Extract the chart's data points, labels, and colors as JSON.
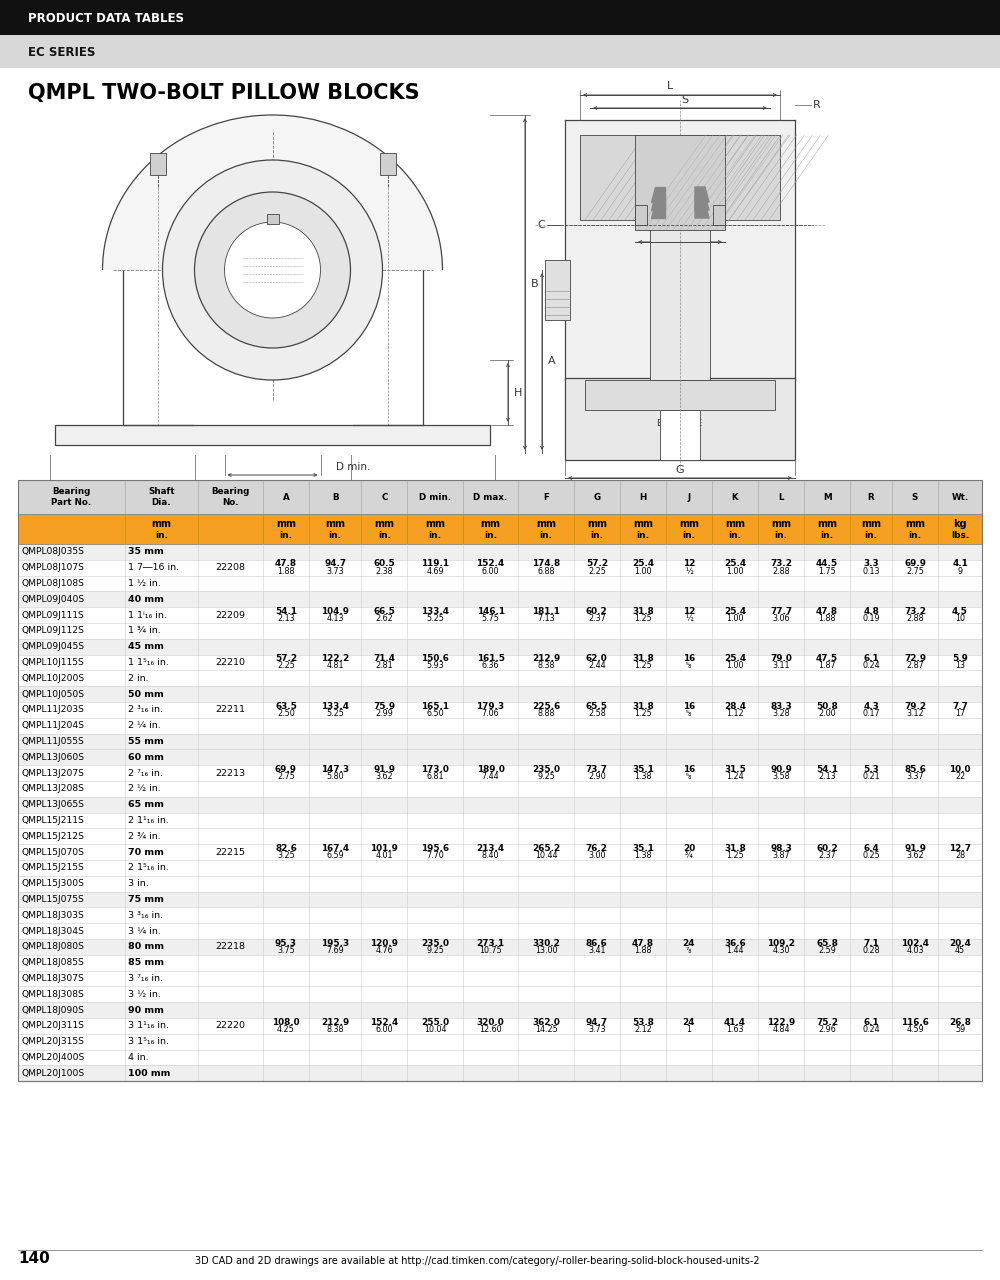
{
  "page_title": "PRODUCT DATA TABLES",
  "series": "EC SERIES",
  "chart_title": "QMPL TWO-BOLT PILLOW BLOCKS",
  "col_headers": [
    "Bearing\nPart No.",
    "Shaft\nDia.",
    "Bearing\nNo.",
    "A",
    "B",
    "C",
    "D min.",
    "D max.",
    "F",
    "G",
    "H",
    "J",
    "K",
    "L",
    "M",
    "R",
    "S",
    "Wt."
  ],
  "col_units_mm": [
    "",
    "mm",
    "",
    "mm",
    "mm",
    "mm",
    "mm",
    "mm",
    "mm",
    "mm",
    "mm",
    "mm",
    "mm",
    "mm",
    "mm",
    "mm",
    "mm",
    "kg"
  ],
  "col_units_in": [
    "",
    "in.",
    "",
    "in.",
    "in.",
    "in.",
    "in.",
    "in.",
    "in.",
    "in.",
    "in.",
    "in.",
    "in.",
    "in.",
    "in.",
    "in.",
    "in.",
    "lbs."
  ],
  "rows": [
    [
      "QMPL08J035S",
      "35 mm",
      "",
      "",
      "",
      "",
      "",
      "",
      "",
      "",
      "",
      "",
      "",
      "",
      "",
      "",
      "",
      ""
    ],
    [
      "QMPL08J107S",
      "1 7―16 in.",
      "22208",
      "47.8\n1.88",
      "94.7\n3.73",
      "60.5\n2.38",
      "119.1\n4.69",
      "152.4\n6.00",
      "174.8\n6.88",
      "57.2\n2.25",
      "25.4\n1.00",
      "12\n½",
      "25.4\n1.00",
      "73.2\n2.88",
      "44.5\n1.75",
      "3.3\n0.13",
      "69.9\n2.75",
      "4.1\n9"
    ],
    [
      "QMPL08J108S",
      "1 ½ in.",
      "",
      "",
      "",
      "",
      "",
      "",
      "",
      "",
      "",
      "",
      "",
      "",
      "",
      "",
      "",
      ""
    ],
    [
      "QMPL09J040S",
      "40 mm",
      "",
      "",
      "",
      "",
      "",
      "",
      "",
      "",
      "",
      "",
      "",
      "",
      "",
      "",
      "",
      ""
    ],
    [
      "QMPL09J111S",
      "1 1ⁱ₁₆ in.",
      "22209",
      "54.1\n2.13",
      "104.9\n4.13",
      "66.5\n2.62",
      "133.4\n5.25",
      "146.1\n5.75",
      "181.1\n7.13",
      "60.2\n2.37",
      "31.8\n1.25",
      "12\n½",
      "25.4\n1.00",
      "77.7\n3.06",
      "47.8\n1.88",
      "4.8\n0.19",
      "73.2\n2.88",
      "4.5\n10"
    ],
    [
      "QMPL09J112S",
      "1 ¾ in.",
      "",
      "",
      "",
      "",
      "",
      "",
      "",
      "",
      "",
      "",
      "",
      "",
      "",
      "",
      "",
      ""
    ],
    [
      "QMPL09J045S",
      "45 mm",
      "",
      "",
      "",
      "",
      "",
      "",
      "",
      "",
      "",
      "",
      "",
      "",
      "",
      "",
      "",
      ""
    ],
    [
      "QMPL10J115S",
      "1 1⁵₁₆ in.",
      "22210",
      "57.2\n2.25",
      "122.2\n4.81",
      "71.4\n2.81",
      "150.6\n5.93",
      "161.5\n6.36",
      "212.9\n8.38",
      "62.0\n2.44",
      "31.8\n1.25",
      "16\n⁵₈",
      "25.4\n1.00",
      "79.0\n3.11",
      "47.5\n1.87",
      "6.1\n0.24",
      "72.9\n2.87",
      "5.9\n13"
    ],
    [
      "QMPL10J200S",
      "2 in.",
      "",
      "",
      "",
      "",
      "",
      "",
      "",
      "",
      "",
      "",
      "",
      "",
      "",
      "",
      "",
      ""
    ],
    [
      "QMPL10J050S",
      "50 mm",
      "",
      "",
      "",
      "",
      "",
      "",
      "",
      "",
      "",
      "",
      "",
      "",
      "",
      "",
      "",
      ""
    ],
    [
      "QMPL11J203S",
      "2 ³₁₆ in.",
      "22211",
      "63.5\n2.50",
      "133.4\n5.25",
      "75.9\n2.99",
      "165.1\n6.50",
      "179.3\n7.06",
      "225.6\n8.88",
      "65.5\n2.58",
      "31.8\n1.25",
      "16\n⁵₈",
      "28.4\n1.12",
      "83.3\n3.28",
      "50.8\n2.00",
      "4.3\n0.17",
      "79.2\n3.12",
      "7.7\n17"
    ],
    [
      "QMPL11J204S",
      "2 ¼ in.",
      "",
      "",
      "",
      "",
      "",
      "",
      "",
      "",
      "",
      "",
      "",
      "",
      "",
      "",
      "",
      ""
    ],
    [
      "QMPL11J055S",
      "55 mm",
      "",
      "",
      "",
      "",
      "",
      "",
      "",
      "",
      "",
      "",
      "",
      "",
      "",
      "",
      "",
      ""
    ],
    [
      "QMPL13J060S",
      "60 mm",
      "",
      "",
      "",
      "",
      "",
      "",
      "",
      "",
      "",
      "",
      "",
      "",
      "",
      "",
      "",
      ""
    ],
    [
      "QMPL13J207S",
      "2 ⁷₁₆ in.",
      "22213",
      "69.9\n2.75",
      "147.3\n5.80",
      "91.9\n3.62",
      "173.0\n6.81",
      "189.0\n7.44",
      "235.0\n9.25",
      "73.7\n2.90",
      "35.1\n1.38",
      "16\n⁵₈",
      "31.5\n1.24",
      "90.9\n3.58",
      "54.1\n2.13",
      "5.3\n0.21",
      "85.6\n3.37",
      "10.0\n22"
    ],
    [
      "QMPL13J208S",
      "2 ½ in.",
      "",
      "",
      "",
      "",
      "",
      "",
      "",
      "",
      "",
      "",
      "",
      "",
      "",
      "",
      "",
      ""
    ],
    [
      "QMPL13J065S",
      "65 mm",
      "",
      "",
      "",
      "",
      "",
      "",
      "",
      "",
      "",
      "",
      "",
      "",
      "",
      "",
      "",
      ""
    ],
    [
      "QMPL15J211S",
      "2 1¹₁₆ in.",
      "",
      "",
      "",
      "",
      "",
      "",
      "",
      "",
      "",
      "",
      "",
      "",
      "",
      "",
      "",
      ""
    ],
    [
      "QMPL15J212S",
      "2 ¾ in.",
      "",
      "",
      "",
      "",
      "",
      "",
      "",
      "",
      "",
      "",
      "",
      "",
      "",
      "",
      "",
      ""
    ],
    [
      "QMPL15J070S",
      "70 mm",
      "22215",
      "82.6\n3.25",
      "167.4\n6.59",
      "101.9\n4.01",
      "195.6\n7.70",
      "213.4\n8.40",
      "265.2\n10.44",
      "76.2\n3.00",
      "35.1\n1.38",
      "20\n¾",
      "31.8\n1.25",
      "98.3\n3.87",
      "60.2\n2.37",
      "6.4\n0.25",
      "91.9\n3.62",
      "12.7\n28"
    ],
    [
      "QMPL15J215S",
      "2 1⁵₁₆ in.",
      "",
      "",
      "",
      "",
      "",
      "",
      "",
      "",
      "",
      "",
      "",
      "",
      "",
      "",
      "",
      ""
    ],
    [
      "QMPL15J300S",
      "3 in.",
      "",
      "",
      "",
      "",
      "",
      "",
      "",
      "",
      "",
      "",
      "",
      "",
      "",
      "",
      "",
      ""
    ],
    [
      "QMPL15J075S",
      "75 mm",
      "",
      "",
      "",
      "",
      "",
      "",
      "",
      "",
      "",
      "",
      "",
      "",
      "",
      "",
      "",
      ""
    ],
    [
      "QMPL18J303S",
      "3 ³₁₆ in.",
      "",
      "",
      "",
      "",
      "",
      "",
      "",
      "",
      "",
      "",
      "",
      "",
      "",
      "",
      "",
      ""
    ],
    [
      "QMPL18J304S",
      "3 ¼ in.",
      "",
      "",
      "",
      "",
      "",
      "",
      "",
      "",
      "",
      "",
      "",
      "",
      "",
      "",
      "",
      ""
    ],
    [
      "QMPL18J080S",
      "80 mm",
      "22218",
      "95.3\n3.75",
      "195.3\n7.69",
      "120.9\n4.76",
      "235.0\n9.25",
      "273.1\n10.75",
      "330.2\n13.00",
      "86.6\n3.41",
      "47.8\n1.88",
      "24\n⁷₈",
      "36.6\n1.44",
      "109.2\n4.30",
      "65.8\n2.59",
      "7.1\n0.28",
      "102.4\n4.03",
      "20.4\n45"
    ],
    [
      "QMPL18J085S",
      "85 mm",
      "",
      "",
      "",
      "",
      "",
      "",
      "",
      "",
      "",
      "",
      "",
      "",
      "",
      "",
      "",
      ""
    ],
    [
      "QMPL18J307S",
      "3 ⁷₁₆ in.",
      "",
      "",
      "",
      "",
      "",
      "",
      "",
      "",
      "",
      "",
      "",
      "",
      "",
      "",
      "",
      ""
    ],
    [
      "QMPL18J308S",
      "3 ½ in.",
      "",
      "",
      "",
      "",
      "",
      "",
      "",
      "",
      "",
      "",
      "",
      "",
      "",
      "",
      "",
      ""
    ],
    [
      "QMPL18J090S",
      "90 mm",
      "",
      "",
      "",
      "",
      "",
      "",
      "",
      "",
      "",
      "",
      "",
      "",
      "",
      "",
      "",
      ""
    ],
    [
      "QMPL20J311S",
      "3 1¹₁₆ in.",
      "22220",
      "108.0\n4.25",
      "212.9\n8.38",
      "152.4\n6.00",
      "255.0\n10.04",
      "320.0\n12.60",
      "362.0\n14.25",
      "94.7\n3.73",
      "53.8\n2.12",
      "24\n1",
      "41.4\n1.63",
      "122.9\n4.84",
      "75.2\n2.96",
      "6.1\n0.24",
      "116.6\n4.59",
      "26.8\n59"
    ],
    [
      "QMPL20J315S",
      "3 1⁵₁₆ in.",
      "",
      "",
      "",
      "",
      "",
      "",
      "",
      "",
      "",
      "",
      "",
      "",
      "",
      "",
      "",
      ""
    ],
    [
      "QMPL20J400S",
      "4 in.",
      "",
      "",
      "",
      "",
      "",
      "",
      "",
      "",
      "",
      "",
      "",
      "",
      "",
      "",
      "",
      ""
    ],
    [
      "QMPL20J100S",
      "100 mm",
      "",
      "",
      "",
      "",
      "",
      "",
      "",
      "",
      "",
      "",
      "",
      "",
      "",
      "",
      "",
      ""
    ]
  ],
  "mm_bold_rows": [
    0,
    3,
    6,
    9,
    12,
    13,
    16,
    22,
    25,
    29,
    33
  ],
  "footer_text": "140",
  "footer_url": "3D CAD and 2D drawings are available at http://cad.timken.com/category/-roller-bearing-solid-block-housed-units-2"
}
